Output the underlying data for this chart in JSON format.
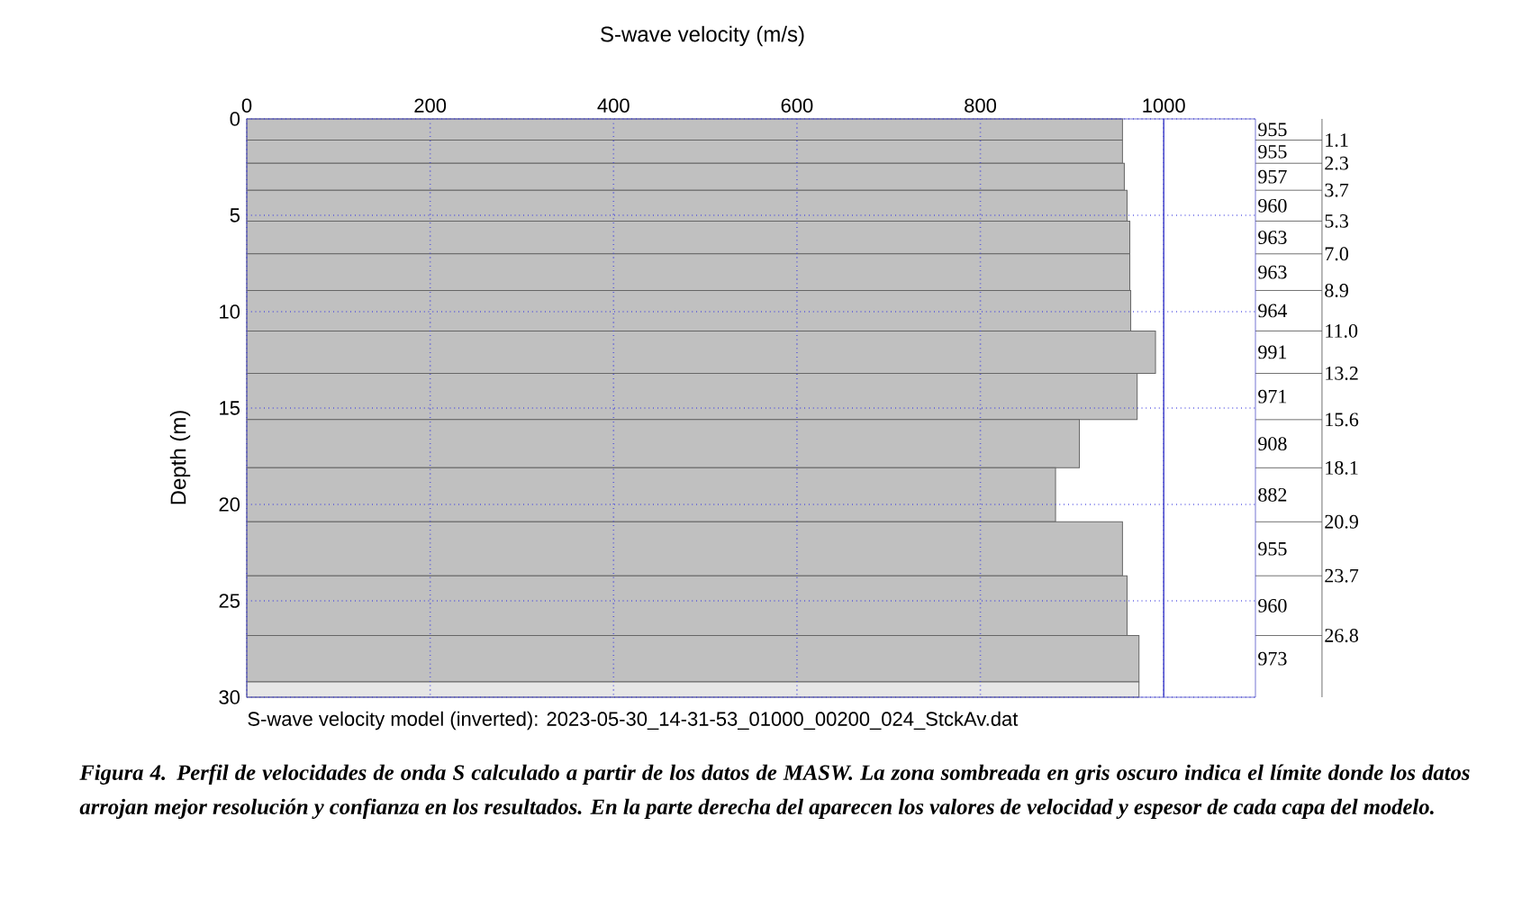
{
  "chart_data": {
    "type": "histogram",
    "orientation": "horizontal",
    "xlabel": "S-wave velocity (m/s)",
    "ylabel": "Depth (m)",
    "bins": [
      0,
      1.1,
      2.3,
      3.7,
      5.3,
      7.0,
      8.9,
      11.0,
      13.2,
      15.6,
      18.1,
      20.9,
      23.7,
      26.8,
      29.2,
      30
    ],
    "values": [
      955,
      955,
      957,
      960,
      963,
      963,
      964,
      991,
      971,
      908,
      882,
      955,
      960,
      973,
      973
    ],
    "colors": [
      "#c0c0c0",
      "#c0c0c0",
      "#c0c0c0",
      "#c0c0c0",
      "#c0c0c0",
      "#c0c0c0",
      "#c0c0c0",
      "#c0c0c0",
      "#c0c0c0",
      "#c0c0c0",
      "#c0c0c0",
      "#c0c0c0",
      "#c0c0c0",
      "#c0c0c0",
      "#e6e6e6"
    ],
    "xlim": [
      0,
      1100
    ],
    "xticks": [
      0,
      200,
      400,
      600,
      800,
      1000
    ],
    "ylim": [
      30,
      0
    ],
    "yticks": [
      0,
      5,
      10,
      15,
      20,
      25,
      30
    ],
    "grid": true,
    "ref_lines": [
      {
        "axis": "x",
        "value": 1000,
        "color": "#5050c8"
      }
    ],
    "annotations": [
      "955",
      "955",
      "957",
      "960",
      "963",
      "963",
      "964",
      "991",
      "971",
      "908",
      "882",
      "955",
      "960",
      "973",
      "1.1",
      "2.3",
      "3.7",
      "5.3",
      "7.0",
      "8.9",
      "11.0",
      "13.2",
      "15.6",
      "18.1",
      "20.9",
      "23.7",
      "26.8",
      "S-wave velocity model (inverted): 2023-05-30_14-31-53_01000_00200_024_StckAv.dat",
      "Figura 4. Perfil de velocidades de onda S calculado a partir de los datos de MASW. La zona sombreada en gris oscuro indica el límite donde los datos arrojan mejor resolución y confianza en los resultados. En la parte derecha del aparecen los valores de velocidad y espesor de cada capa del modelo."
    ]
  }
}
